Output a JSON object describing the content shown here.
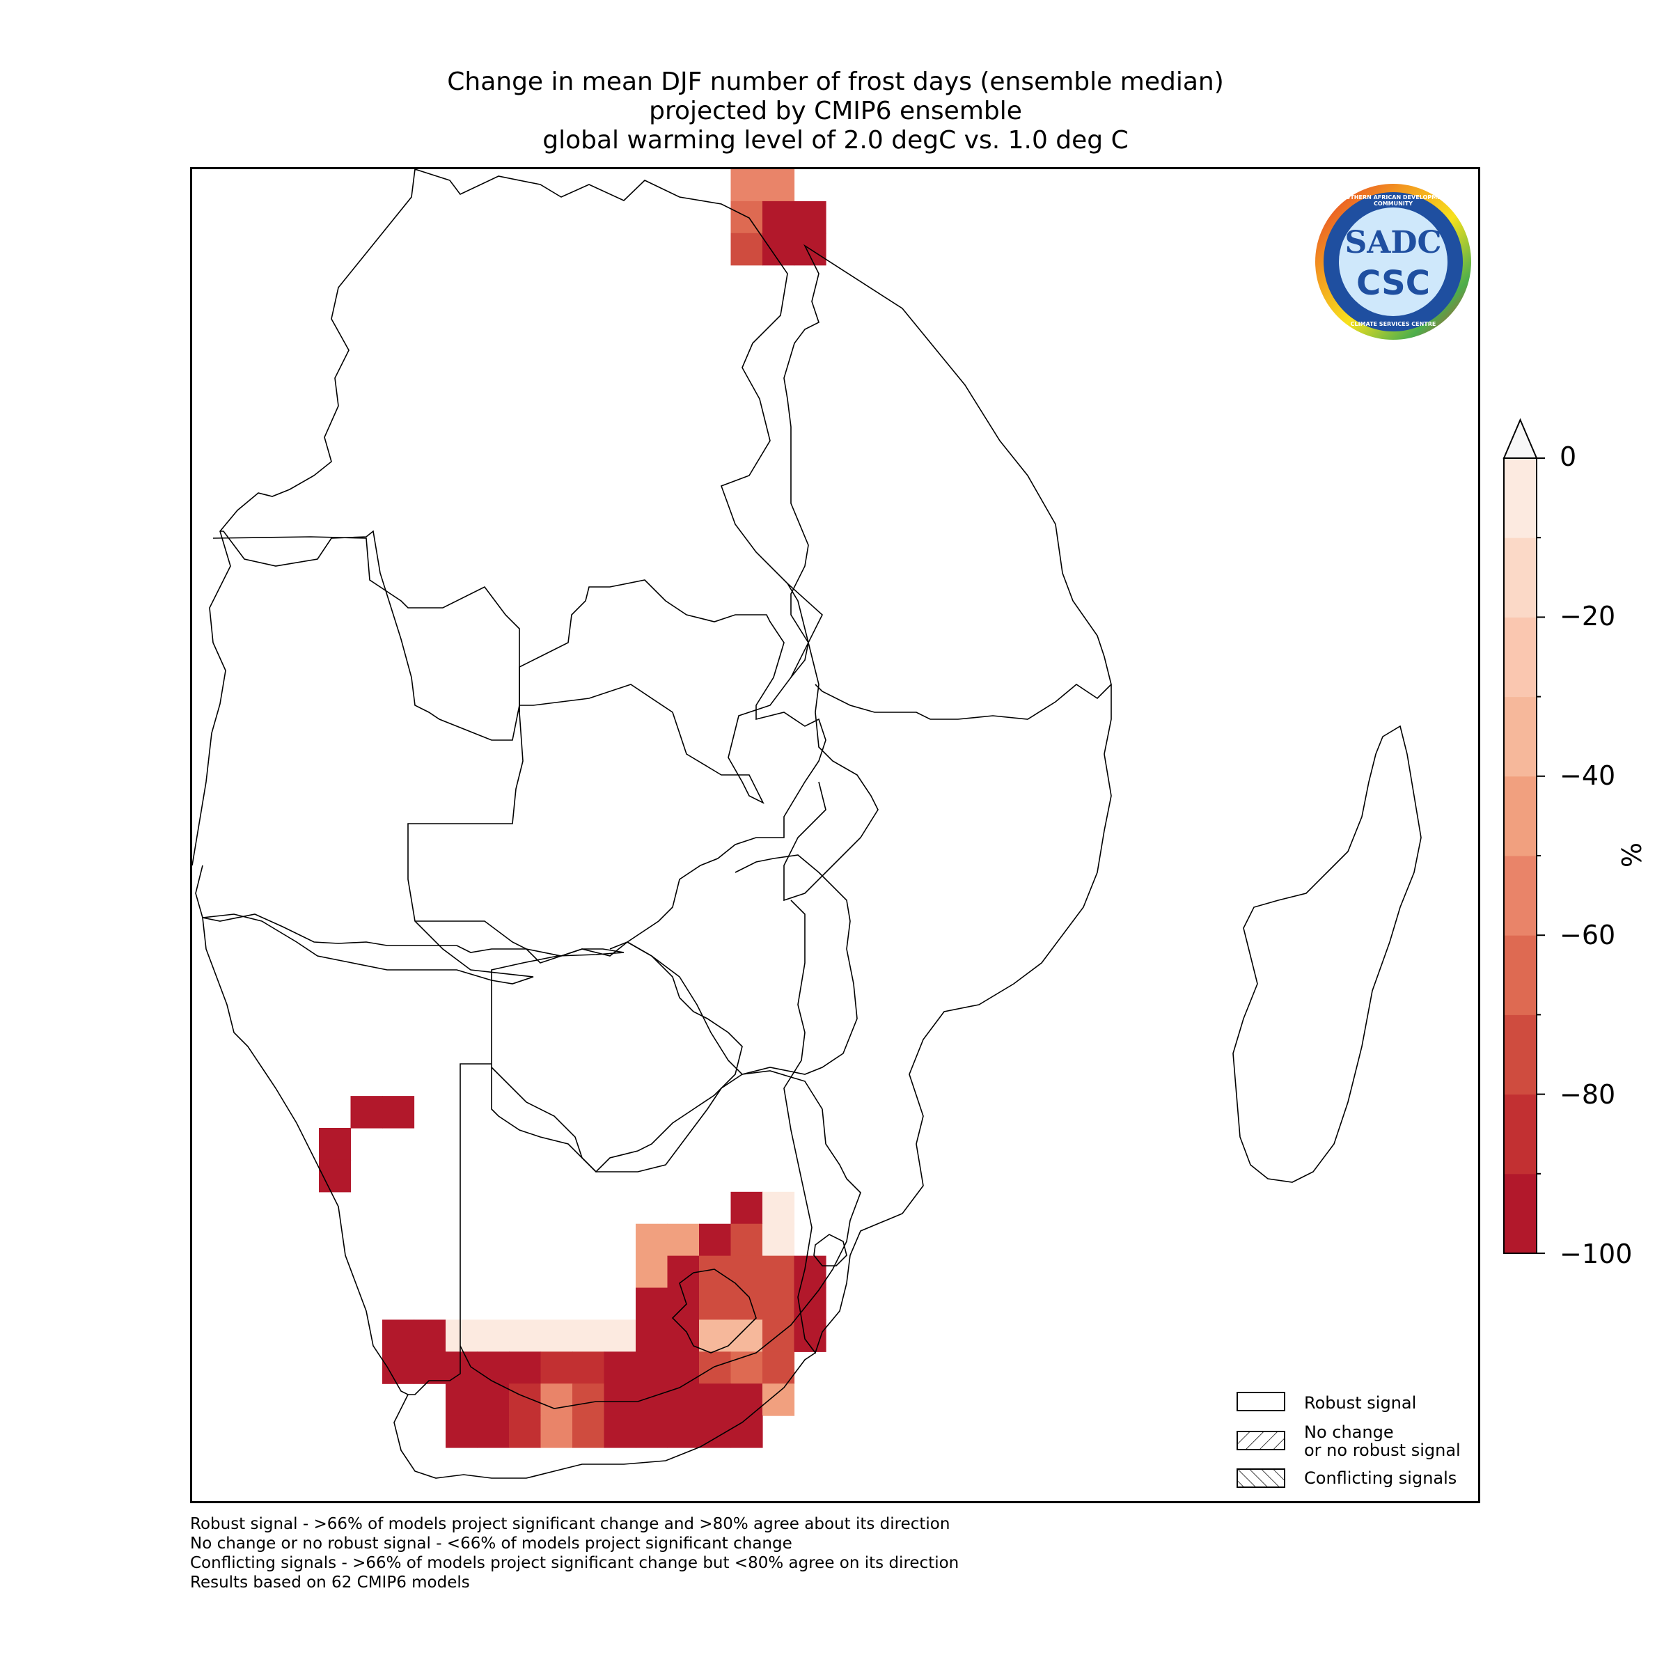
{
  "title": {
    "line1": "Change in mean DJF number of frost days (ensemble median)",
    "line2": "projected by CMIP6 ensemble",
    "line3": "global warming level of 2.0 degC vs. 1.0 deg C"
  },
  "logo": {
    "text_top": "SOUTHERN AFRICAN DEVELOPMENT COMMUNITY",
    "text_bottom": "CLIMATE SERVICES CENTRE",
    "initials_top": "SADC",
    "initials_bottom": "CSC"
  },
  "colorbar": {
    "unit": "%",
    "tick_labels": [
      "0",
      "−20",
      "−40",
      "−60",
      "−80",
      "−100"
    ],
    "range": [
      -100,
      0
    ],
    "extend": "max",
    "colors": [
      "#b2182b",
      "#c23032",
      "#cf4c3f",
      "#de6a52",
      "#e98469",
      "#f1a07f",
      "#f6b89b",
      "#fac7b0",
      "#fbd9c7",
      "#fceae0",
      "#f7f7f7"
    ]
  },
  "legend": {
    "items": [
      {
        "label": "Robust signal",
        "hatch": "none"
      },
      {
        "label_line1": "No change",
        "label_line2": "or no robust signal",
        "hatch": "forward"
      },
      {
        "label": "Conflicting signals",
        "hatch": "back"
      }
    ]
  },
  "footnotes": [
    "Robust signal - >66% of models project significant change and >80% agree about its direction",
    "No change or no robust signal - <66% of models project significant change",
    "Conflicting signals - >66% of models project significant change but <80% agree on its direction",
    "Results based on 62 CMIP6 models"
  ],
  "map_cells": [
    {
      "col": 17,
      "row": 0,
      "value": -55
    },
    {
      "col": 18,
      "row": 0,
      "value": -55
    },
    {
      "col": 17,
      "row": 1,
      "value": -65
    },
    {
      "col": 18,
      "row": 1,
      "value": -100
    },
    {
      "col": 19,
      "row": 1,
      "value": -100
    },
    {
      "col": 17,
      "row": 2,
      "value": -75
    },
    {
      "col": 18,
      "row": 2,
      "value": -100
    },
    {
      "col": 19,
      "row": 2,
      "value": -100
    },
    {
      "col": 5,
      "row": 29,
      "value": -100
    },
    {
      "col": 6,
      "row": 29,
      "value": -100
    },
    {
      "col": 4,
      "row": 30,
      "value": -100
    },
    {
      "col": 4,
      "row": 31,
      "value": -100
    },
    {
      "col": 17,
      "row": 32,
      "value": -100
    },
    {
      "col": 18,
      "row": 32,
      "value": -2
    },
    {
      "col": 14,
      "row": 33,
      "value": -45
    },
    {
      "col": 15,
      "row": 33,
      "value": -45
    },
    {
      "col": 16,
      "row": 33,
      "value": -100
    },
    {
      "col": 17,
      "row": 33,
      "value": -75
    },
    {
      "col": 18,
      "row": 33,
      "value": -2
    },
    {
      "col": 14,
      "row": 34,
      "value": -45
    },
    {
      "col": 15,
      "row": 34,
      "value": -100
    },
    {
      "col": 16,
      "row": 34,
      "value": -75
    },
    {
      "col": 17,
      "row": 34,
      "value": -75
    },
    {
      "col": 18,
      "row": 34,
      "value": -75
    },
    {
      "col": 19,
      "row": 34,
      "value": -100
    },
    {
      "col": 14,
      "row": 35,
      "value": -100
    },
    {
      "col": 15,
      "row": 35,
      "value": -100
    },
    {
      "col": 16,
      "row": 35,
      "value": -75
    },
    {
      "col": 17,
      "row": 35,
      "value": -75
    },
    {
      "col": 18,
      "row": 35,
      "value": -75
    },
    {
      "col": 19,
      "row": 35,
      "value": -100
    },
    {
      "col": 6,
      "row": 36,
      "value": -100
    },
    {
      "col": 7,
      "row": 36,
      "value": -100
    },
    {
      "col": 8,
      "row": 36,
      "value": -2
    },
    {
      "col": 9,
      "row": 36,
      "value": -2
    },
    {
      "col": 10,
      "row": 36,
      "value": -2
    },
    {
      "col": 11,
      "row": 36,
      "value": -2
    },
    {
      "col": 12,
      "row": 36,
      "value": -2
    },
    {
      "col": 13,
      "row": 36,
      "value": -2
    },
    {
      "col": 14,
      "row": 36,
      "value": -100
    },
    {
      "col": 15,
      "row": 36,
      "value": -100
    },
    {
      "col": 16,
      "row": 36,
      "value": -35
    },
    {
      "col": 17,
      "row": 36,
      "value": -35
    },
    {
      "col": 18,
      "row": 36,
      "value": -75
    },
    {
      "col": 19,
      "row": 36,
      "value": -100
    },
    {
      "col": 6,
      "row": 37,
      "value": -100
    },
    {
      "col": 7,
      "row": 37,
      "value": -100
    },
    {
      "col": 8,
      "row": 37,
      "value": -100
    },
    {
      "col": 9,
      "row": 37,
      "value": -100
    },
    {
      "col": 10,
      "row": 37,
      "value": -100
    },
    {
      "col": 11,
      "row": 37,
      "value": -85
    },
    {
      "col": 12,
      "row": 37,
      "value": -85
    },
    {
      "col": 13,
      "row": 37,
      "value": -100
    },
    {
      "col": 14,
      "row": 37,
      "value": -100
    },
    {
      "col": 15,
      "row": 37,
      "value": -100
    },
    {
      "col": 16,
      "row": 37,
      "value": -75
    },
    {
      "col": 17,
      "row": 37,
      "value": -65
    },
    {
      "col": 18,
      "row": 37,
      "value": -75
    },
    {
      "col": 8,
      "row": 38,
      "value": -100
    },
    {
      "col": 9,
      "row": 38,
      "value": -100
    },
    {
      "col": 10,
      "row": 38,
      "value": -85
    },
    {
      "col": 11,
      "row": 38,
      "value": -55
    },
    {
      "col": 12,
      "row": 38,
      "value": -75
    },
    {
      "col": 13,
      "row": 38,
      "value": -100
    },
    {
      "col": 14,
      "row": 38,
      "value": -100
    },
    {
      "col": 15,
      "row": 38,
      "value": -100
    },
    {
      "col": 16,
      "row": 38,
      "value": -100
    },
    {
      "col": 17,
      "row": 38,
      "value": -100
    },
    {
      "col": 18,
      "row": 38,
      "value": -45
    },
    {
      "col": 8,
      "row": 39,
      "value": -100
    },
    {
      "col": 9,
      "row": 39,
      "value": -100
    },
    {
      "col": 10,
      "row": 39,
      "value": -85
    },
    {
      "col": 11,
      "row": 39,
      "value": -55
    },
    {
      "col": 12,
      "row": 39,
      "value": -75
    },
    {
      "col": 13,
      "row": 39,
      "value": -100
    },
    {
      "col": 14,
      "row": 39,
      "value": -100
    },
    {
      "col": 15,
      "row": 39,
      "value": -100
    },
    {
      "col": 16,
      "row": 39,
      "value": -100
    },
    {
      "col": 17,
      "row": 39,
      "value": -100
    }
  ]
}
